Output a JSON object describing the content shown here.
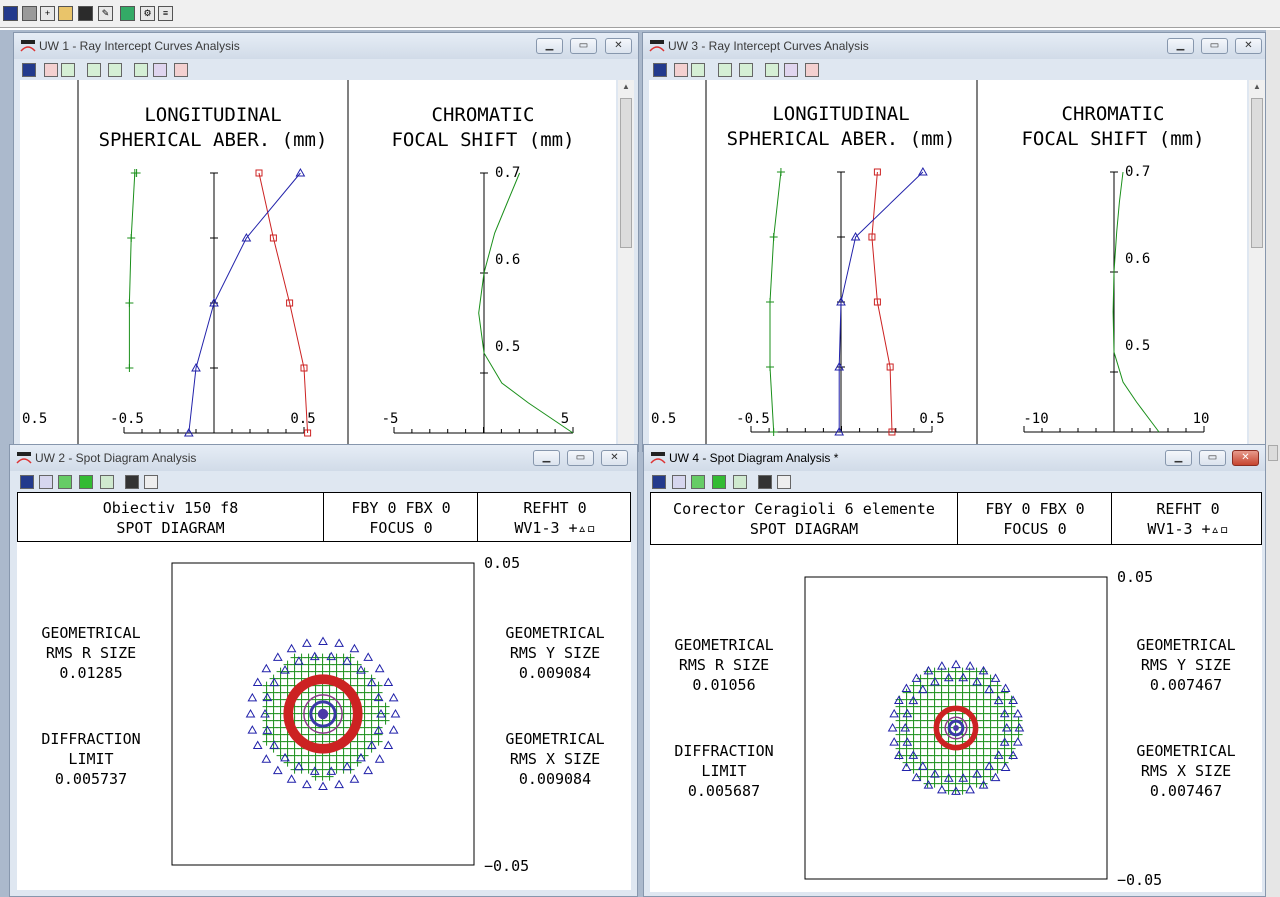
{
  "main_toolbar": {
    "icons": [
      "new-window-icon",
      "gray-window-icon",
      "new-file-icon",
      "open-folder-icon",
      "save-icon",
      "edit-icon",
      "lens-data-icon",
      "settings-icon",
      "report-icon"
    ]
  },
  "windows": {
    "uw1": {
      "title": "UW 1 - Ray Intercept Curves Analysis",
      "left_axis_label": "0.5",
      "lsa": {
        "title1": "LONGITUDINAL",
        "title2": "SPHERICAL ABER. (mm)",
        "tick_min": "-0.5",
        "tick_max": "0.5"
      },
      "cfs": {
        "title1": "CHROMATIC",
        "title2": "FOCAL SHIFT (mm)",
        "tick_min": "-5",
        "tick_max": "5",
        "y_labels": [
          "0.7",
          "0.6",
          "0.5"
        ]
      }
    },
    "uw3": {
      "title": "UW 3 - Ray Intercept Curves Analysis",
      "left_axis_label": "0.5",
      "lsa": {
        "title1": "LONGITUDINAL",
        "title2": "SPHERICAL ABER. (mm)",
        "tick_min": "-0.5",
        "tick_max": "0.5"
      },
      "cfs": {
        "title1": "CHROMATIC",
        "title2": "FOCAL SHIFT (mm)",
        "tick_min": "-10",
        "tick_max": "10",
        "y_labels": [
          "0.7",
          "0.6",
          "0.5"
        ]
      }
    },
    "uw2": {
      "title": "UW 2 - Spot Diagram Analysis",
      "header": {
        "name": "Obiectiv 150 f8",
        "type": "SPOT DIAGRAM",
        "field": "FBY 0 FBX 0",
        "focus": "FOCUS 0",
        "refht": "REFHT 0",
        "wavelengths": "WV1-3 +▵▫"
      },
      "axis_top": "0.05",
      "axis_bottom": "−0.05",
      "rms_r": {
        "l1": "GEOMETRICAL",
        "l2": "RMS R SIZE",
        "value": "0.01285"
      },
      "diffraction": {
        "l1": "DIFFRACTION",
        "l2": "LIMIT",
        "value": "0.005737"
      },
      "rms_y": {
        "l1": "GEOMETRICAL",
        "l2": "RMS Y SIZE",
        "value": "0.009084"
      },
      "rms_x": {
        "l1": "GEOMETRICAL",
        "l2": "RMS X SIZE",
        "value": "0.009084"
      }
    },
    "uw4": {
      "title": "UW 4 - Spot Diagram Analysis *",
      "header": {
        "name": "Corector Ceragioli 6 elemente",
        "type": "SPOT DIAGRAM",
        "field": "FBY 0 FBX 0",
        "focus": "FOCUS 0",
        "refht": "REFHT 0",
        "wavelengths": "WV1-3 +▵▫"
      },
      "axis_top": "0.05",
      "axis_bottom": "−0.05",
      "rms_r": {
        "l1": "GEOMETRICAL",
        "l2": "RMS R SIZE",
        "value": "0.01056"
      },
      "diffraction": {
        "l1": "DIFFRACTION",
        "l2": "LIMIT",
        "value": "0.005687"
      },
      "rms_y": {
        "l1": "GEOMETRICAL",
        "l2": "RMS Y SIZE",
        "value": "0.007467"
      },
      "rms_x": {
        "l1": "GEOMETRICAL",
        "l2": "RMS X SIZE",
        "value": "0.007467"
      }
    }
  },
  "colors": {
    "wave1": "#1a8f1a",
    "wave2": "#cc2222",
    "wave3": "#2222aa"
  },
  "chart_data": [
    {
      "chart": "uw1-lsa",
      "type": "line",
      "title": "LONGITUDINAL SPHERICAL ABER. (mm)",
      "xlim": [
        -0.5,
        0.5
      ],
      "ylim": [
        0,
        1
      ],
      "series": [
        {
          "name": "green",
          "x": [
            -0.45,
            -0.47,
            -0.47,
            -0.46,
            -0.44,
            -0.43
          ],
          "y": [
            0,
            0.25,
            0.5,
            0.75,
            1.0,
            1.0
          ]
        },
        {
          "name": "red",
          "x": [
            0,
            0.52,
            0.5,
            0.42,
            0.33,
            0.25
          ],
          "y": [
            0,
            0.0,
            0.25,
            0.5,
            0.75,
            1.0
          ]
        },
        {
          "name": "blue",
          "x": [
            0,
            -0.14,
            -0.1,
            0.0,
            0.18,
            0.48
          ],
          "y": [
            0,
            0.0,
            0.25,
            0.5,
            0.75,
            1.0
          ]
        }
      ]
    },
    {
      "chart": "uw1-cfs",
      "type": "line",
      "title": "CHROMATIC FOCAL SHIFT (mm)",
      "xlim": [
        -5,
        5
      ],
      "ylim": [
        0.44,
        0.7
      ],
      "x": [
        5,
        2.5,
        1,
        0,
        -0.3,
        0,
        0.6,
        1.3,
        2
      ],
      "y": [
        0.44,
        0.47,
        0.49,
        0.52,
        0.56,
        0.6,
        0.64,
        0.67,
        0.7
      ]
    },
    {
      "chart": "uw3-lsa",
      "type": "line",
      "title": "LONGITUDINAL SPHERICAL ABER. (mm)",
      "xlim": [
        -0.5,
        0.5
      ],
      "ylim": [
        0,
        1
      ],
      "series": [
        {
          "name": "green",
          "x": [
            -0.36,
            -0.37,
            -0.39,
            -0.39,
            -0.37,
            -0.33
          ],
          "y": [
            0,
            0.0,
            0.25,
            0.5,
            0.75,
            1.0
          ]
        },
        {
          "name": "red",
          "x": [
            0,
            0.28,
            0.27,
            0.2,
            0.17,
            0.2
          ],
          "y": [
            0,
            0.0,
            0.25,
            0.5,
            0.75,
            1.0
          ]
        },
        {
          "name": "blue",
          "x": [
            0,
            -0.01,
            -0.01,
            0.0,
            0.08,
            0.45
          ],
          "y": [
            0,
            0.0,
            0.25,
            0.5,
            0.75,
            1.0
          ]
        }
      ]
    },
    {
      "chart": "uw3-cfs",
      "type": "line",
      "title": "CHROMATIC FOCAL SHIFT (mm)",
      "xlim": [
        -10,
        10
      ],
      "ylim": [
        0.44,
        0.7
      ],
      "x": [
        5,
        2.5,
        1,
        0,
        -0.1,
        0,
        0.3,
        0.6,
        1
      ],
      "y": [
        0.44,
        0.47,
        0.49,
        0.52,
        0.56,
        0.6,
        0.64,
        0.67,
        0.7
      ]
    },
    {
      "chart": "uw2-spot",
      "type": "scatter",
      "xlim": [
        -0.05,
        0.05
      ],
      "ylim": [
        -0.05,
        0.05
      ],
      "series": [
        {
          "name": "green",
          "radius": 0.021
        },
        {
          "name": "red",
          "radius": 0.0115
        },
        {
          "name": "blue",
          "radius": 0.024
        }
      ]
    },
    {
      "chart": "uw4-spot",
      "type": "scatter",
      "xlim": [
        -0.05,
        0.05
      ],
      "ylim": [
        -0.05,
        0.05
      ],
      "series": [
        {
          "name": "green",
          "radius": 0.021
        },
        {
          "name": "red",
          "radius": 0.0065
        },
        {
          "name": "blue",
          "radius": 0.021
        }
      ]
    }
  ]
}
